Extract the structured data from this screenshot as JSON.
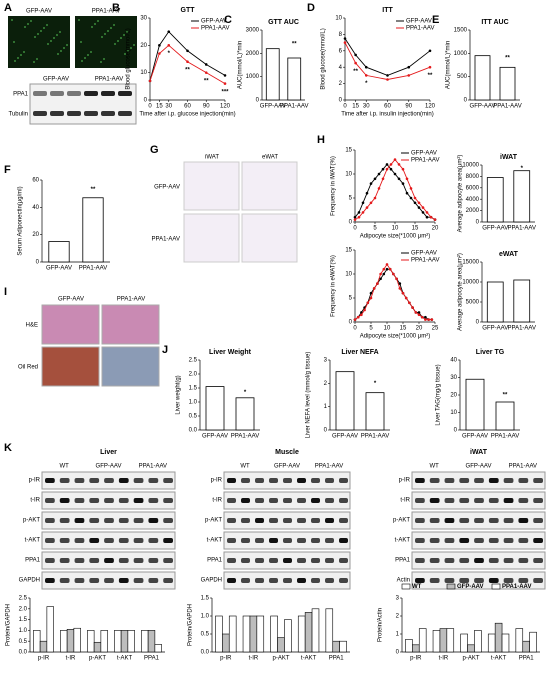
{
  "figure": {
    "A": {
      "panel": "A",
      "image_labels": [
        "GFP-AAV",
        "PPA1-AAV"
      ],
      "blot_groups": [
        "GFP-AAV",
        "PPA1-AAV"
      ],
      "blot_rows": [
        "PPA1",
        "Tubulin"
      ]
    },
    "G": {
      "panel": "G",
      "columns": [
        "iWAT",
        "eWAT"
      ],
      "rows": [
        "GFP-AAV",
        "PPA1-AAV"
      ]
    },
    "I": {
      "panel": "I",
      "columns": [
        "GFP-AAV",
        "PPA1-AAV"
      ],
      "rows": [
        "H&E",
        "Oil Red"
      ]
    },
    "K": {
      "panel": "K",
      "blots": [
        {
          "title": "Liver",
          "groups": [
            "WT",
            "GFP-AAV",
            "PPA1-AAV"
          ],
          "rows": [
            "p-IR",
            "t-IR",
            "p-AKT",
            "t-AKT",
            "PPA1",
            "GAPDH"
          ]
        },
        {
          "title": "Muscle",
          "groups": [
            "WT",
            "GFP-AAV",
            "PPA1-AAV"
          ],
          "rows": [
            "p-IR",
            "t-IR",
            "p-AKT",
            "t-AKT",
            "PPA1",
            "GAPDH"
          ]
        },
        {
          "title": "iWAT",
          "groups": [
            "WT",
            "GFP-AAV",
            "PPA1-AAV"
          ],
          "rows": [
            "p-IR",
            "t-IR",
            "p-AKT",
            "t-AKT",
            "PPA1",
            "Actin"
          ]
        }
      ]
    }
  },
  "chart_data": [
    {
      "type": "line",
      "panel": "B",
      "title": "GTT",
      "xlabel": "Time after i.p. glucose injection(min)",
      "ylabel": "Blood glucose(mmol/L)",
      "x": [
        0,
        15,
        30,
        60,
        90,
        120
      ],
      "xlim": [
        0,
        120
      ],
      "xticks": [
        0,
        15,
        30,
        60,
        90,
        120
      ],
      "ylim": [
        0,
        30
      ],
      "yticks": [
        0,
        10,
        20,
        30
      ],
      "legend": true,
      "series": [
        {
          "name": "GFP-AAV",
          "color": "#000000",
          "values": [
            7,
            20,
            25,
            18,
            13,
            9
          ]
        },
        {
          "name": "PPA1-AAV",
          "color": "#e41a1c",
          "values": [
            7,
            17,
            20,
            14,
            10,
            6
          ]
        }
      ],
      "annotations": [
        {
          "text": "*",
          "x": 30,
          "y": 17
        },
        {
          "text": "**",
          "x": 60,
          "y": 11
        },
        {
          "text": "**",
          "x": 90,
          "y": 7
        },
        {
          "text": "***",
          "x": 120,
          "y": 3
        }
      ]
    },
    {
      "type": "bar",
      "panel": "C",
      "title": "GTT AUC",
      "ylabel": "AUC(mmol/L)*min",
      "categories": [
        "GFP-AAV",
        "PPA1-AAV"
      ],
      "values": [
        2200,
        1800
      ],
      "color": "#ffffff",
      "edgecolor": "#000000",
      "ylim": [
        0,
        3000
      ],
      "yticks": [
        0,
        1000,
        2000,
        3000
      ],
      "annotations": [
        {
          "text": "**",
          "x": "PPA1-AAV",
          "y": 2400
        }
      ]
    },
    {
      "type": "line",
      "panel": "D",
      "title": "ITT",
      "xlabel": "Time after i.p. insulin injection(min)",
      "ylabel": "Blood glucose(mmol/L)",
      "x": [
        0,
        15,
        30,
        60,
        90,
        120
      ],
      "xlim": [
        0,
        120
      ],
      "xticks": [
        0,
        15,
        30,
        60,
        90,
        120
      ],
      "ylim": [
        0,
        10
      ],
      "yticks": [
        0,
        2,
        4,
        6,
        8,
        10
      ],
      "legend": true,
      "series": [
        {
          "name": "GFP-AAV",
          "color": "#000000",
          "values": [
            7.5,
            5.5,
            4,
            3,
            4,
            6
          ]
        },
        {
          "name": "PPA1-AAV",
          "color": "#e41a1c",
          "values": [
            7,
            4.5,
            3,
            2.5,
            3,
            4
          ]
        }
      ],
      "annotations": [
        {
          "text": "**",
          "x": 15,
          "y": 3.5
        },
        {
          "text": "*",
          "x": 30,
          "y": 2
        },
        {
          "text": "**",
          "x": 120,
          "y": 3
        }
      ]
    },
    {
      "type": "bar",
      "panel": "E",
      "title": "ITT AUC",
      "ylabel": "AUC(mmol/L)*min",
      "categories": [
        "GFP-AAV",
        "PPA1-AAV"
      ],
      "values": [
        950,
        700
      ],
      "color": "#ffffff",
      "edgecolor": "#000000",
      "ylim": [
        0,
        1500
      ],
      "yticks": [
        0,
        500,
        1000,
        1500
      ],
      "annotations": [
        {
          "text": "**",
          "x": "PPA1-AAV",
          "y": 900
        }
      ]
    },
    {
      "type": "bar",
      "panel": "F",
      "ylabel": "Serum Adiponectin(μg/ml)",
      "categories": [
        "GFP-AAV",
        "PPA1-AAV"
      ],
      "values": [
        15,
        47
      ],
      "color": "#ffffff",
      "edgecolor": "#000000",
      "ylim": [
        0,
        60
      ],
      "yticks": [
        0,
        20,
        40,
        60
      ],
      "annotations": [
        {
          "text": "**",
          "x": "PPA1-AAV",
          "y": 53
        }
      ]
    },
    {
      "type": "line",
      "panel": "H",
      "xlabel": "Adipocyte size(*1000 μm²)",
      "ylabel": "Frequency in iWAT(%)",
      "x": [
        0,
        1,
        2,
        3,
        4,
        5,
        6,
        7,
        8,
        9,
        10,
        11,
        12,
        13,
        14,
        15,
        16,
        17,
        18,
        19,
        20
      ],
      "xlim": [
        0,
        20
      ],
      "xticks": [
        0,
        5,
        10,
        15,
        20
      ],
      "ylim": [
        0,
        15
      ],
      "yticks": [
        0,
        5,
        10,
        15
      ],
      "legend": true,
      "series": [
        {
          "name": "GFP-AAV",
          "color": "#000000",
          "values": [
            1,
            2,
            4,
            6,
            8,
            9,
            10,
            11,
            12,
            11,
            10,
            9,
            8,
            6,
            5,
            4,
            3,
            2,
            1,
            1,
            0.5
          ]
        },
        {
          "name": "PPA1-AAV",
          "color": "#e41a1c",
          "values": [
            0.5,
            1,
            2,
            3,
            4,
            5,
            7,
            9,
            11,
            12,
            13,
            12,
            11,
            9,
            7,
            5,
            4,
            3,
            2,
            1,
            0.5
          ]
        }
      ]
    },
    {
      "type": "bar",
      "title": "iWAT",
      "ylabel": "Average adipocyte area(μm²)",
      "categories": [
        "GFP-AAV",
        "PPA1-AAV"
      ],
      "values": [
        7800,
        9000
      ],
      "color": "#ffffff",
      "edgecolor": "#000000",
      "ylim": [
        0,
        10000
      ],
      "yticks": [
        0,
        2000,
        4000,
        6000,
        8000,
        10000
      ],
      "annotations": [
        {
          "text": "*",
          "x": "PPA1-AAV",
          "y": 9400
        }
      ]
    },
    {
      "type": "line",
      "xlabel": "Adipocyte size(*1000 μm²)",
      "ylabel": "Frequency in eWAT(%)",
      "x": [
        0,
        1,
        2,
        3,
        4,
        5,
        6,
        7,
        8,
        9,
        10,
        11,
        12,
        13,
        14,
        15,
        16,
        17,
        18,
        19,
        20,
        21,
        22,
        23,
        24
      ],
      "xlim": [
        0,
        25
      ],
      "xticks": [
        0,
        5,
        10,
        15,
        20,
        25
      ],
      "ylim": [
        0,
        15
      ],
      "yticks": [
        0,
        5,
        10,
        15
      ],
      "legend": true,
      "series": [
        {
          "name": "GFP-AAV",
          "color": "#000000",
          "values": [
            0.5,
            1,
            2,
            3,
            4,
            6,
            7,
            8,
            9,
            10,
            11,
            11,
            10,
            9,
            8,
            6,
            5,
            4,
            3,
            2,
            2,
            1,
            1,
            0.5,
            0.5
          ]
        },
        {
          "name": "PPA1-AAV",
          "color": "#e41a1c",
          "values": [
            0.5,
            1,
            1.5,
            2.5,
            4,
            5,
            7,
            8,
            10,
            11,
            12,
            11,
            10,
            9,
            7,
            6,
            5,
            4,
            3,
            2,
            1.5,
            1,
            0.5,
            0.5,
            0.5
          ]
        }
      ]
    },
    {
      "type": "bar",
      "title": "eWAT",
      "ylabel": "Average adipocyte area(μm²)",
      "categories": [
        "GFP-AAV",
        "PPA1-AAV"
      ],
      "values": [
        10000,
        10500
      ],
      "color": "#ffffff",
      "edgecolor": "#000000",
      "ylim": [
        0,
        15000
      ],
      "yticks": [
        0,
        5000,
        10000,
        15000
      ]
    },
    {
      "type": "bar",
      "panel": "J",
      "title": "Liver Weight",
      "ylabel": "Liver weight(g)",
      "categories": [
        "GFP-AAV",
        "PPA1-AAV"
      ],
      "values": [
        1.55,
        1.15
      ],
      "color": "#ffffff",
      "edgecolor": "#000000",
      "ylim": [
        0,
        2.5
      ],
      "yticks": [
        {
          "value": 0,
          "label": "0.0"
        },
        0.5,
        {
          "value": 1,
          "label": "1.0"
        },
        1.5,
        {
          "value": 2,
          "label": "2.0"
        },
        2.5
      ],
      "annotations": [
        {
          "text": "*",
          "x": "PPA1-AAV",
          "y": 1.35
        }
      ]
    },
    {
      "type": "bar",
      "title": "Liver NEFA",
      "ylabel": "Liver NEFA level (mmol/g tissue)",
      "categories": [
        "GFP-AAV",
        "PPA1-AAV"
      ],
      "values": [
        2.5,
        1.6
      ],
      "color": "#ffffff",
      "edgecolor": "#000000",
      "ylim": [
        0,
        3
      ],
      "yticks": [
        0,
        1,
        2,
        3
      ],
      "annotations": [
        {
          "text": "*",
          "x": "PPA1-AAV",
          "y": 2
        }
      ]
    },
    {
      "type": "bar",
      "title": "Liver TG",
      "ylabel": "Liver TAG(mg/g tissue)",
      "categories": [
        "GFP-AAV",
        "PPA1-AAV"
      ],
      "values": [
        29,
        16
      ],
      "color": "#ffffff",
      "edgecolor": "#000000",
      "ylim": [
        0,
        40
      ],
      "yticks": [
        0,
        10,
        20,
        30,
        40
      ],
      "annotations": [
        {
          "text": "**",
          "x": "PPA1-AAV",
          "y": 20
        }
      ]
    },
    {
      "type": "groupedbar",
      "ylabel": "Protein/GAPDH",
      "categories": [
        "p-IR",
        "t-IR",
        "p-AKT",
        "t-AKT",
        "PPA1"
      ],
      "edgecolor": "#000000",
      "ylim": [
        0,
        2.5
      ],
      "yticks": [
        {
          "value": 0,
          "label": "0.0"
        },
        0.5,
        {
          "value": 1,
          "label": "1.0"
        },
        1.5,
        {
          "value": 2,
          "label": "2.0"
        },
        2.5
      ],
      "series": [
        {
          "name": "WT",
          "color": "#ffffff",
          "values": [
            1,
            1,
            1,
            1,
            1
          ]
        },
        {
          "name": "GFP-AAV",
          "color": "#bdbdbd",
          "values": [
            0.5,
            1.05,
            0.45,
            1,
            1
          ]
        },
        {
          "name": "PPA1-AAV",
          "color": "#ffffff",
          "values": [
            2.1,
            1.1,
            1,
            1,
            0.35
          ]
        }
      ]
    },
    {
      "type": "groupedbar",
      "ylabel": "Protein/GAPDH",
      "categories": [
        "p-IR",
        "t-IR",
        "p-AKT",
        "t-AKT",
        "PPA1"
      ],
      "edgecolor": "#000000",
      "ylim": [
        0,
        1.5
      ],
      "yticks": [
        {
          "value": 0,
          "label": "0.0"
        },
        0.5,
        {
          "value": 1,
          "label": "1.0"
        },
        1.5
      ],
      "series": [
        {
          "name": "WT",
          "color": "#ffffff",
          "values": [
            1,
            1,
            1,
            1,
            1.2
          ]
        },
        {
          "name": "GFP-AAV",
          "color": "#bdbdbd",
          "values": [
            0.5,
            1,
            0.4,
            1.1,
            0.3
          ]
        },
        {
          "name": "PPA1-AAV",
          "color": "#ffffff",
          "values": [
            1,
            1,
            0.9,
            1.2,
            0.3
          ]
        }
      ]
    },
    {
      "type": "groupedbar",
      "ylabel": "Protein/Actin",
      "categories": [
        "p-IR",
        "t-IR",
        "p-AKT",
        "t-AKT",
        "PPA1"
      ],
      "edgecolor": "#000000",
      "ylim": [
        0,
        3
      ],
      "yticks": [
        0,
        1,
        2,
        3
      ],
      "legend": true,
      "series": [
        {
          "name": "WT",
          "color": "#ffffff",
          "values": [
            0.7,
            1.2,
            1,
            1,
            1.3
          ]
        },
        {
          "name": "GFP-AAV",
          "color": "#bdbdbd",
          "values": [
            0.4,
            1.3,
            0.4,
            1.6,
            0.6
          ]
        },
        {
          "name": "PPA1-AAV",
          "color": "#ffffff",
          "values": [
            1.3,
            1.3,
            1.2,
            1,
            1.1
          ]
        }
      ]
    }
  ]
}
